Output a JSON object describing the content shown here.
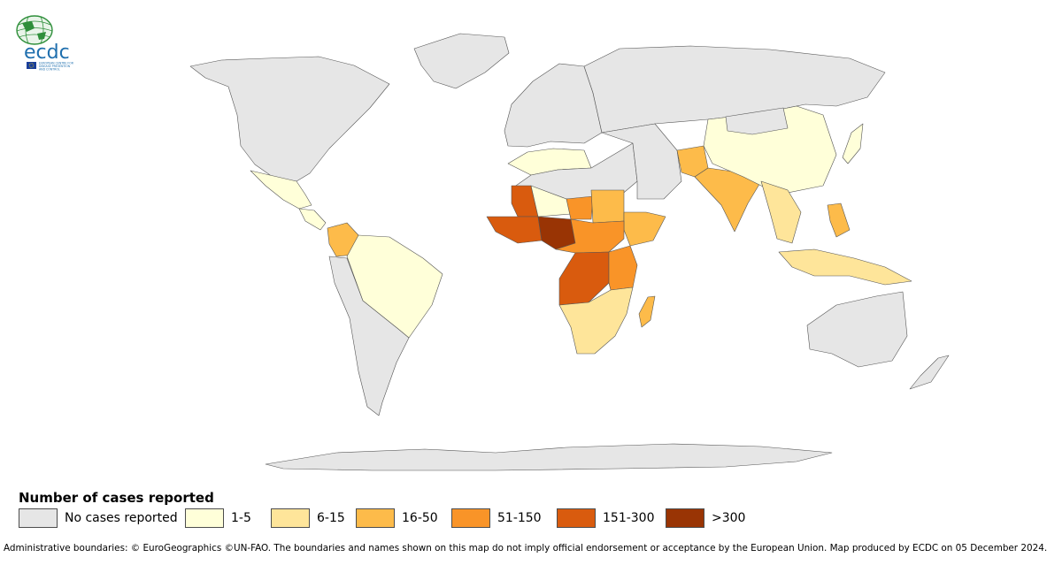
{
  "logo": {
    "text": "ecdc",
    "subtitle_lines": [
      "EUROPEAN CENTRE FOR",
      "DISEASE PREVENTION",
      "AND CONTROL"
    ]
  },
  "legend": {
    "title": "Number of cases reported",
    "classes": [
      {
        "label": "No cases reported",
        "color": "#e6e6e6"
      },
      {
        "label": "1-5",
        "color": "#ffffd9"
      },
      {
        "label": "6-15",
        "color": "#fee59a"
      },
      {
        "label": "16-50",
        "color": "#fdbb4a"
      },
      {
        "label": "51-150",
        "color": "#f99428"
      },
      {
        "label": "151-300",
        "color": "#d95b0e"
      },
      {
        "label": ">300",
        "color": "#993404"
      }
    ]
  },
  "map": {
    "regions": [
      {
        "name": "North America",
        "class": 0
      },
      {
        "name": "Greenland",
        "class": 0
      },
      {
        "name": "Mexico",
        "class": 1
      },
      {
        "name": "Central America",
        "class": 1
      },
      {
        "name": "Colombia",
        "class": 3
      },
      {
        "name": "Brazil",
        "class": 1
      },
      {
        "name": "South America (other)",
        "class": 0
      },
      {
        "name": "Europe",
        "class": 0
      },
      {
        "name": "Russia",
        "class": 0
      },
      {
        "name": "Maghreb",
        "class": 1
      },
      {
        "name": "Sahara",
        "class": 0
      },
      {
        "name": "Mauritania",
        "class": 5
      },
      {
        "name": "Mali",
        "class": 1
      },
      {
        "name": "Niger",
        "class": 4
      },
      {
        "name": "Coastal West Africa",
        "class": 5
      },
      {
        "name": "Nigeria",
        "class": 6
      },
      {
        "name": "Sudan",
        "class": 3
      },
      {
        "name": "Horn of Africa",
        "class": 3
      },
      {
        "name": "Central Africa",
        "class": 4
      },
      {
        "name": "DR Congo",
        "class": 5
      },
      {
        "name": "East Africa",
        "class": 4
      },
      {
        "name": "Southern Africa",
        "class": 2
      },
      {
        "name": "Madagascar",
        "class": 3
      },
      {
        "name": "Middle East",
        "class": 0
      },
      {
        "name": "Pakistan",
        "class": 3
      },
      {
        "name": "India",
        "class": 3
      },
      {
        "name": "China",
        "class": 1
      },
      {
        "name": "Mongolia",
        "class": 0
      },
      {
        "name": "Southeast Asia",
        "class": 2
      },
      {
        "name": "Indonesia",
        "class": 2
      },
      {
        "name": "Philippines",
        "class": 3
      },
      {
        "name": "Japan",
        "class": 1
      },
      {
        "name": "Australia",
        "class": 0
      },
      {
        "name": "New Zealand",
        "class": 0
      },
      {
        "name": "Antarctica",
        "class": 0
      }
    ]
  },
  "footer": "Administrative boundaries: © EuroGeographics ©UN-FAO. The boundaries and names shown on this map do not imply official endorsement or acceptance by the European Union. Map produced by ECDC on 05 December 2024."
}
